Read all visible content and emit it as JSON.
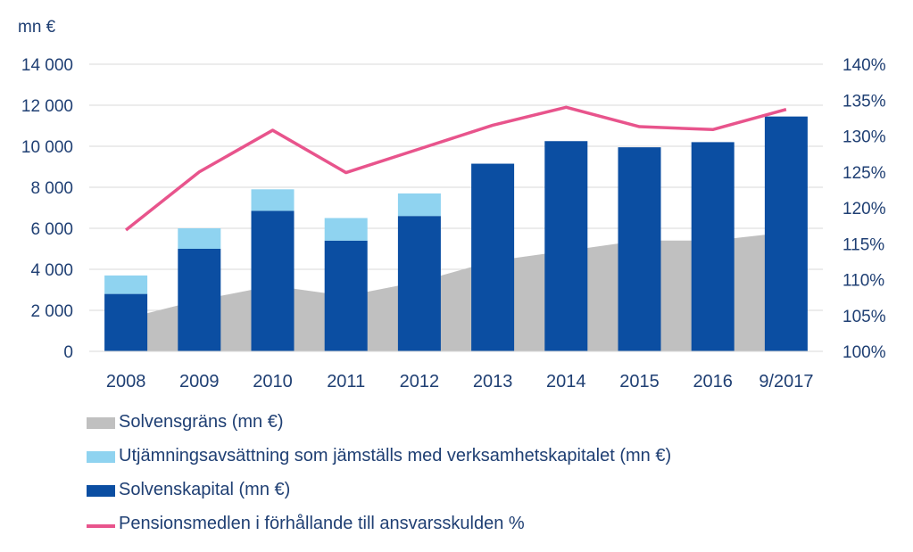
{
  "colors": {
    "solvensgrans": "#c0c0c0",
    "utjamning": "#8fd3f0",
    "solvenskapital": "#0b4ea2",
    "pension_line": "#e8548c",
    "text": "#1f3f73",
    "grid": "#d9d9d9"
  },
  "chart_data": {
    "type": "bar",
    "unit_label": "mn €",
    "categories": [
      "2008",
      "2009",
      "2010",
      "2011",
      "2012",
      "2013",
      "2014",
      "2015",
      "2016",
      "9/2017"
    ],
    "y_left": {
      "ylim": [
        0,
        14000
      ],
      "ticks": [
        {
          "value": 0,
          "label": "0"
        },
        {
          "value": 2000,
          "label": "2 000"
        },
        {
          "value": 4000,
          "label": "4 000"
        },
        {
          "value": 6000,
          "label": "6 000"
        },
        {
          "value": 8000,
          "label": "8 000"
        },
        {
          "value": 10000,
          "label": "10 000"
        },
        {
          "value": 12000,
          "label": "12 000"
        },
        {
          "value": 14000,
          "label": "14 000"
        }
      ]
    },
    "y_right": {
      "ylim": [
        100,
        140
      ],
      "ticks": [
        {
          "value": 100,
          "label": "100%"
        },
        {
          "value": 105,
          "label": "105%"
        },
        {
          "value": 110,
          "label": "110%"
        },
        {
          "value": 115,
          "label": "115%"
        },
        {
          "value": 120,
          "label": "120%"
        },
        {
          "value": 125,
          "label": "125%"
        },
        {
          "value": 130,
          "label": "130%"
        },
        {
          "value": 135,
          "label": "135%"
        },
        {
          "value": 140,
          "label": "140%"
        }
      ]
    },
    "series": [
      {
        "name": "Solvensgräns (mn €)",
        "kind": "area",
        "axis": "left",
        "values": [
          1600,
          2500,
          3200,
          2700,
          3400,
          4400,
          4900,
          5400,
          5400,
          5800
        ]
      },
      {
        "name": "Utjämningsavsättning som jämställs med verksamhetskapitalet (mn €)",
        "kind": "bar-stack-top",
        "axis": "left",
        "values": [
          900,
          1000,
          1050,
          1100,
          1100,
          0,
          0,
          0,
          0,
          0
        ]
      },
      {
        "name": "Solvenskapital (mn €)",
        "kind": "bar",
        "axis": "left",
        "values": [
          2800,
          5000,
          6850,
          5400,
          6600,
          9150,
          10250,
          9950,
          10200,
          11450
        ]
      },
      {
        "name": "Pensionsmedlen i förhållande till ansvarsskulden %",
        "kind": "line",
        "axis": "right",
        "values": [
          116.9,
          125.0,
          130.8,
          124.9,
          128.2,
          131.5,
          134.0,
          131.3,
          130.9,
          133.7
        ]
      }
    ],
    "grid": true,
    "legend_position": "bottom"
  }
}
